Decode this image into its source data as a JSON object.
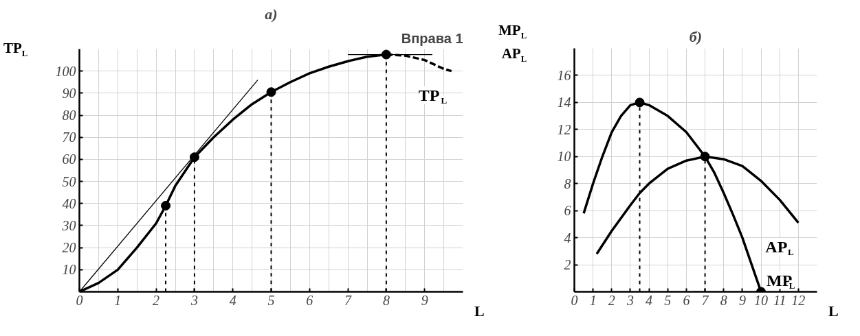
{
  "chart_data": [
    {
      "type": "line",
      "title": "а)",
      "xlabel": "L",
      "ylabel": "TP$_{L}$",
      "xlim": [
        0,
        10
      ],
      "ylim": [
        0,
        110
      ],
      "xticks": [
        0,
        1,
        2,
        3,
        4,
        5,
        6,
        7,
        8,
        9
      ],
      "yticks": [
        10,
        20,
        30,
        40,
        50,
        60,
        70,
        80,
        90,
        100
      ],
      "grid": true,
      "annotations": [
        "Вправа 1"
      ],
      "series": [
        {
          "color": "#000000",
          "line_style": "solid",
          "x": [
            0,
            0.5,
            1,
            1.5,
            2,
            2.25,
            2.5,
            3,
            3.5,
            4,
            4.5,
            5,
            5.5,
            6,
            6.5,
            7,
            7.5,
            8
          ],
          "values": [
            0,
            4,
            10,
            20,
            31,
            39,
            48,
            61,
            70,
            78,
            85,
            90.5,
            95,
            99,
            102,
            104.5,
            106.5,
            107.5
          ]
        },
        {
          "name": "TP$_{L}$",
          "color": "#000000",
          "line_style": "dashed",
          "x": [
            8,
            8.5,
            9,
            9.5,
            9.7
          ],
          "values": [
            107.5,
            107,
            105,
            101,
            100
          ]
        },
        {
          "color": "#000000",
          "line_style": "solid",
          "x": [
            0,
            4.65
          ],
          "values": [
            0,
            96
          ]
        },
        {
          "color": "#000000",
          "line_style": "solid",
          "x": [
            7,
            9.2
          ],
          "values": [
            107.5,
            107.5
          ]
        },
        {
          "color": "#000000",
          "line_style": "dashed",
          "x": [
            2.25,
            2.25
          ],
          "values": [
            0,
            39
          ]
        },
        {
          "color": "#000000",
          "line_style": "dashed",
          "x": [
            3,
            3
          ],
          "values": [
            0,
            61
          ]
        },
        {
          "color": "#000000",
          "line_style": "dashed",
          "x": [
            5,
            5
          ],
          "values": [
            90.5,
            0
          ]
        },
        {
          "color": "#000000",
          "line_style": "dashed",
          "x": [
            8,
            8
          ],
          "values": [
            0,
            107.5
          ]
        },
        {
          "type": "scatter",
          "marker": "circle",
          "color": "#000000",
          "x": [
            2.25,
            3,
            5,
            8
          ],
          "values": [
            39,
            61,
            90.5,
            107.5
          ]
        }
      ]
    },
    {
      "type": "line",
      "title": "б)",
      "xlabel": "L",
      "ylabel": "MP$_{L}$ AP$_{L}$",
      "xlim": [
        0,
        13
      ],
      "ylim": [
        0,
        18
      ],
      "xticks": [
        0,
        1,
        2,
        3,
        4,
        5,
        6,
        7,
        8,
        9,
        10,
        11,
        12
      ],
      "yticks": [
        2,
        4,
        6,
        8,
        10,
        12,
        14,
        16
      ],
      "grid": true,
      "series": [
        {
          "name": "MP$_{L}$",
          "color": "#000000",
          "line_style": "solid",
          "x": [
            0.5,
            1,
            1.5,
            2,
            2.5,
            3,
            3.5,
            4,
            5,
            6,
            7,
            7.5,
            8,
            8.5,
            9,
            9.5,
            10
          ],
          "values": [
            5.8,
            8,
            10,
            11.8,
            13,
            13.8,
            14,
            13.8,
            13,
            11.8,
            10,
            8.8,
            7.3,
            5.7,
            4,
            2,
            0
          ]
        },
        {
          "name": "AP$_{L}$",
          "color": "#000000",
          "line_style": "solid",
          "x": [
            1.2,
            2,
            3,
            3.5,
            4,
            5,
            6,
            7,
            8,
            9,
            10,
            11,
            12
          ],
          "values": [
            2.8,
            4.5,
            6.4,
            7.3,
            8,
            9.1,
            9.7,
            10,
            9.8,
            9.3,
            8.2,
            6.8,
            5.1
          ]
        },
        {
          "color": "#000000",
          "line_style": "dashed",
          "x": [
            3.5,
            3.5
          ],
          "values": [
            0,
            14
          ]
        },
        {
          "color": "#000000",
          "line_style": "dashed",
          "x": [
            7,
            7
          ],
          "values": [
            0,
            10
          ]
        },
        {
          "type": "scatter",
          "marker": "circle",
          "color": "#000000",
          "x": [
            3.5,
            7,
            10
          ],
          "values": [
            14,
            10,
            0
          ]
        }
      ]
    }
  ]
}
